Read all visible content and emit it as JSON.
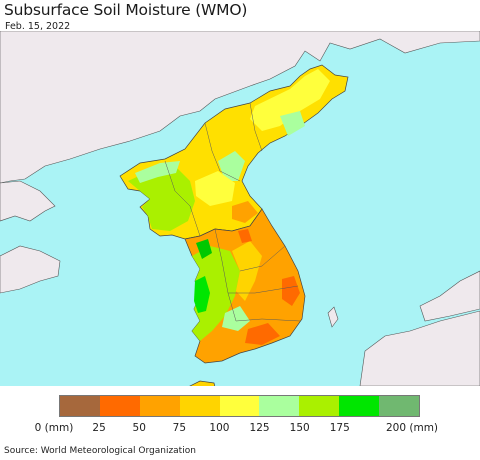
{
  "header": {
    "title": "Subsurface Soil Moisture (WMO)",
    "date": "Feb. 15, 2022"
  },
  "map": {
    "ocean_color": "#aaf3f5",
    "land_outside_color": "#efe9ed",
    "border_color": "#4a4a4a"
  },
  "legend": {
    "colors": [
      "#a6683c",
      "#ff6a00",
      "#ffa200",
      "#ffd400",
      "#ffff3c",
      "#aaff9e",
      "#aaf000",
      "#00e600",
      "#70b870"
    ],
    "labels": [
      {
        "text": "0 (mm)"
      },
      {
        "text": "25"
      },
      {
        "text": "50"
      },
      {
        "text": "75"
      },
      {
        "text": "100"
      },
      {
        "text": "125"
      },
      {
        "text": "150"
      },
      {
        "text": "175"
      },
      {
        "text": "200 (mm)"
      }
    ]
  },
  "footer": {
    "source": "Source: World Meteorological Organization"
  }
}
